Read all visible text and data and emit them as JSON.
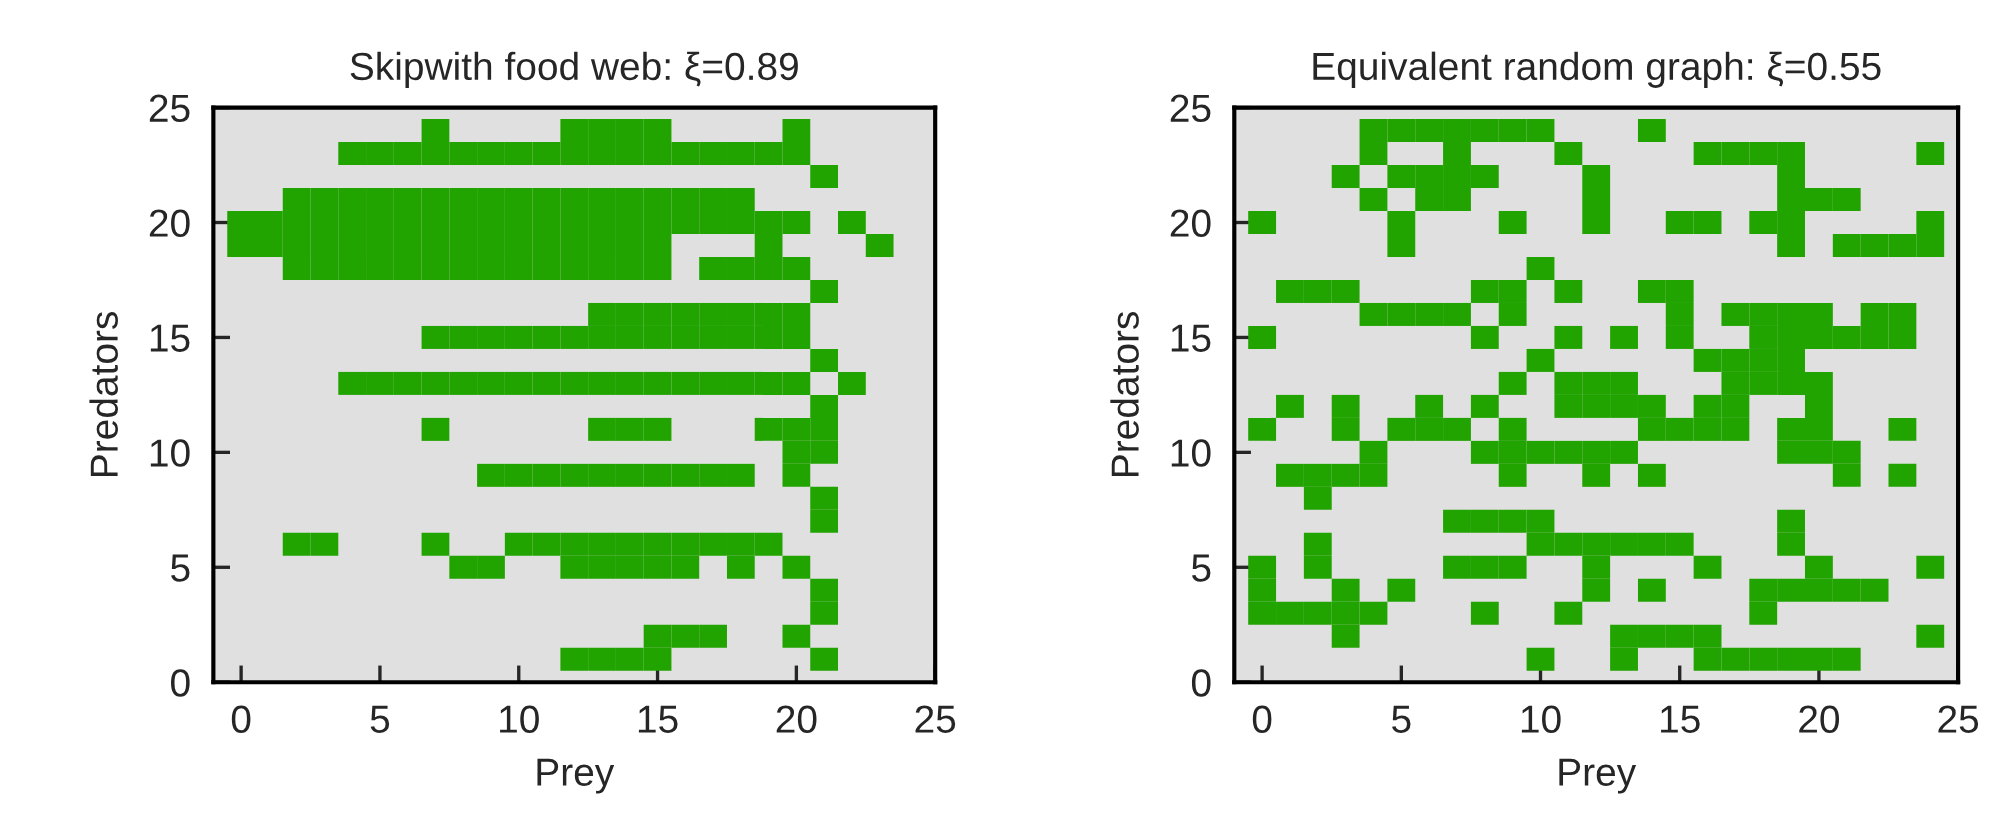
{
  "chart_data": [
    {
      "type": "scatter",
      "title": "Skipwith food web: ξ=0.89",
      "xlabel": "Prey",
      "ylabel": "Predators",
      "xlim": [
        -1,
        25
      ],
      "ylim": [
        0,
        25
      ],
      "xticks": [
        0,
        5,
        10,
        15,
        20,
        25
      ],
      "yticks": [
        0,
        5,
        10,
        15,
        20,
        25
      ],
      "grid": false,
      "marker": "square",
      "series": [
        {
          "color": "#21a300",
          "x": [
            7,
            12,
            13,
            14,
            15,
            20,
            4,
            5,
            6,
            7,
            8,
            9,
            10,
            11,
            12,
            13,
            14,
            15,
            16,
            17,
            18,
            19,
            20,
            21,
            2,
            3,
            4,
            5,
            6,
            7,
            8,
            9,
            10,
            11,
            12,
            13,
            14,
            15,
            16,
            17,
            18,
            0,
            1,
            2,
            3,
            4,
            5,
            6,
            7,
            8,
            9,
            10,
            11,
            12,
            13,
            14,
            15,
            16,
            17,
            18,
            19,
            20,
            22,
            0,
            1,
            2,
            3,
            4,
            5,
            6,
            7,
            8,
            9,
            10,
            11,
            12,
            13,
            14,
            15,
            19,
            23,
            2,
            3,
            4,
            5,
            6,
            7,
            8,
            9,
            10,
            11,
            12,
            13,
            14,
            15,
            17,
            18,
            19,
            20,
            21,
            13,
            14,
            15,
            16,
            17,
            18,
            19,
            20,
            7,
            8,
            9,
            10,
            11,
            12,
            13,
            14,
            15,
            16,
            17,
            18,
            19,
            20,
            21,
            4,
            5,
            6,
            7,
            8,
            9,
            10,
            11,
            12,
            13,
            14,
            15,
            16,
            17,
            18,
            19,
            20,
            22,
            21,
            7,
            13,
            14,
            15,
            19,
            20,
            21,
            20,
            21,
            9,
            10,
            11,
            12,
            13,
            14,
            15,
            16,
            17,
            18,
            20,
            21,
            21,
            2,
            3,
            7,
            10,
            11,
            12,
            13,
            14,
            15,
            16,
            17,
            18,
            19,
            8,
            9,
            12,
            13,
            14,
            15,
            16,
            18,
            20,
            21,
            21,
            15,
            16,
            17,
            20,
            12,
            13,
            14,
            15,
            21
          ],
          "values": [
            24,
            24,
            24,
            24,
            24,
            24,
            23,
            23,
            23,
            23,
            23,
            23,
            23,
            23,
            23,
            23,
            23,
            23,
            23,
            23,
            23,
            23,
            23,
            22,
            21,
            21,
            21,
            21,
            21,
            21,
            21,
            21,
            21,
            21,
            21,
            21,
            21,
            21,
            21,
            21,
            21,
            20,
            20,
            20,
            20,
            20,
            20,
            20,
            20,
            20,
            20,
            20,
            20,
            20,
            20,
            20,
            20,
            20,
            20,
            20,
            20,
            20,
            20,
            19,
            19,
            19,
            19,
            19,
            19,
            19,
            19,
            19,
            19,
            19,
            19,
            19,
            19,
            19,
            19,
            19,
            19,
            18,
            18,
            18,
            18,
            18,
            18,
            18,
            18,
            18,
            18,
            18,
            18,
            18,
            18,
            18,
            18,
            18,
            18,
            17,
            16,
            16,
            16,
            16,
            16,
            16,
            16,
            16,
            15,
            15,
            15,
            15,
            15,
            15,
            15,
            15,
            15,
            15,
            15,
            15,
            15,
            15,
            14,
            13,
            13,
            13,
            13,
            13,
            13,
            13,
            13,
            13,
            13,
            13,
            13,
            13,
            13,
            13,
            13,
            13,
            13,
            12,
            11,
            11,
            11,
            11,
            11,
            11,
            11,
            10,
            10,
            9,
            9,
            9,
            9,
            9,
            9,
            9,
            9,
            9,
            9,
            9,
            8,
            7,
            6,
            6,
            6,
            6,
            6,
            6,
            6,
            6,
            6,
            6,
            6,
            6,
            6,
            5,
            5,
            5,
            5,
            5,
            5,
            5,
            5,
            5,
            4,
            3,
            2,
            2,
            2,
            2,
            1,
            1,
            1,
            1,
            1
          ]
        }
      ]
    },
    {
      "type": "scatter",
      "title": "Equivalent random graph: ξ=0.55",
      "xlabel": "Prey",
      "ylabel": "Predators",
      "xlim": [
        -1,
        25
      ],
      "ylim": [
        0,
        25
      ],
      "xticks": [
        0,
        5,
        10,
        15,
        20,
        25
      ],
      "yticks": [
        0,
        5,
        10,
        15,
        20,
        25
      ],
      "grid": false,
      "marker": "square",
      "series": [
        {
          "color": "#21a300",
          "x": [
            4,
            5,
            6,
            7,
            8,
            9,
            10,
            14,
            4,
            7,
            11,
            16,
            17,
            18,
            19,
            24,
            3,
            5,
            6,
            7,
            8,
            12,
            19,
            4,
            6,
            7,
            12,
            19,
            20,
            21,
            0,
            5,
            9,
            12,
            15,
            16,
            18,
            19,
            24,
            5,
            19,
            21,
            22,
            23,
            24,
            10,
            1,
            2,
            3,
            8,
            9,
            11,
            14,
            15,
            4,
            5,
            6,
            7,
            9,
            15,
            17,
            18,
            19,
            20,
            22,
            23,
            0,
            8,
            11,
            13,
            15,
            18,
            19,
            20,
            21,
            22,
            23,
            10,
            16,
            17,
            18,
            19,
            9,
            11,
            12,
            13,
            17,
            18,
            19,
            20,
            1,
            3,
            6,
            8,
            11,
            12,
            13,
            14,
            16,
            17,
            20,
            0,
            3,
            5,
            6,
            7,
            9,
            14,
            15,
            16,
            17,
            19,
            20,
            23,
            4,
            8,
            9,
            10,
            11,
            12,
            13,
            19,
            20,
            21,
            1,
            2,
            3,
            4,
            9,
            12,
            14,
            21,
            23,
            2,
            7,
            8,
            9,
            10,
            19,
            2,
            10,
            11,
            12,
            13,
            14,
            15,
            19,
            0,
            2,
            7,
            8,
            9,
            12,
            16,
            20,
            24,
            0,
            3,
            5,
            12,
            14,
            18,
            19,
            20,
            21,
            22,
            0,
            1,
            2,
            3,
            4,
            8,
            11,
            18,
            3,
            13,
            14,
            15,
            16,
            24,
            10,
            13,
            16,
            17,
            18,
            19,
            20,
            21
          ],
          "values": [
            24,
            24,
            24,
            24,
            24,
            24,
            24,
            24,
            23,
            23,
            23,
            23,
            23,
            23,
            23,
            23,
            22,
            22,
            22,
            22,
            22,
            22,
            22,
            21,
            21,
            21,
            21,
            21,
            21,
            21,
            20,
            20,
            20,
            20,
            20,
            20,
            20,
            20,
            20,
            19,
            19,
            19,
            19,
            19,
            19,
            18,
            17,
            17,
            17,
            17,
            17,
            17,
            17,
            17,
            16,
            16,
            16,
            16,
            16,
            16,
            16,
            16,
            16,
            16,
            16,
            16,
            15,
            15,
            15,
            15,
            15,
            15,
            15,
            15,
            15,
            15,
            15,
            14,
            14,
            14,
            14,
            14,
            13,
            13,
            13,
            13,
            13,
            13,
            13,
            13,
            12,
            12,
            12,
            12,
            12,
            12,
            12,
            12,
            12,
            12,
            12,
            11,
            11,
            11,
            11,
            11,
            11,
            11,
            11,
            11,
            11,
            11,
            11,
            11,
            10,
            10,
            10,
            10,
            10,
            10,
            10,
            10,
            10,
            10,
            9,
            9,
            9,
            9,
            9,
            9,
            9,
            9,
            9,
            8,
            7,
            7,
            7,
            7,
            7,
            6,
            6,
            6,
            6,
            6,
            6,
            6,
            6,
            5,
            5,
            5,
            5,
            5,
            5,
            5,
            5,
            5,
            4,
            4,
            4,
            4,
            4,
            4,
            4,
            4,
            4,
            4,
            3,
            3,
            3,
            3,
            3,
            3,
            3,
            3,
            2,
            2,
            2,
            2,
            2,
            2,
            1,
            1,
            1,
            1,
            1,
            1,
            1,
            1
          ]
        }
      ]
    }
  ]
}
